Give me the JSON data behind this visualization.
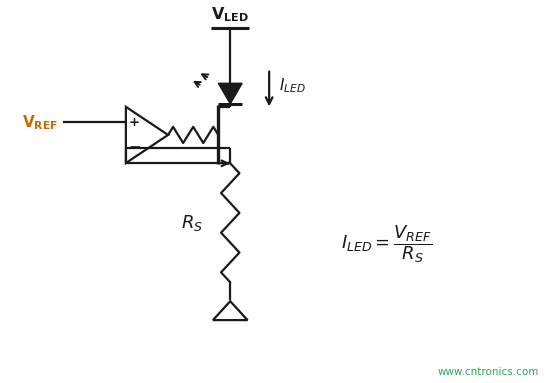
{
  "bg_color": "#ffffff",
  "line_color": "#1a1a1a",
  "vref_color": "#cc6600",
  "watermark_color": "#22aa55",
  "watermark": "www.cntronics.com",
  "figsize": [
    5.47,
    3.83
  ],
  "dpi": 100
}
